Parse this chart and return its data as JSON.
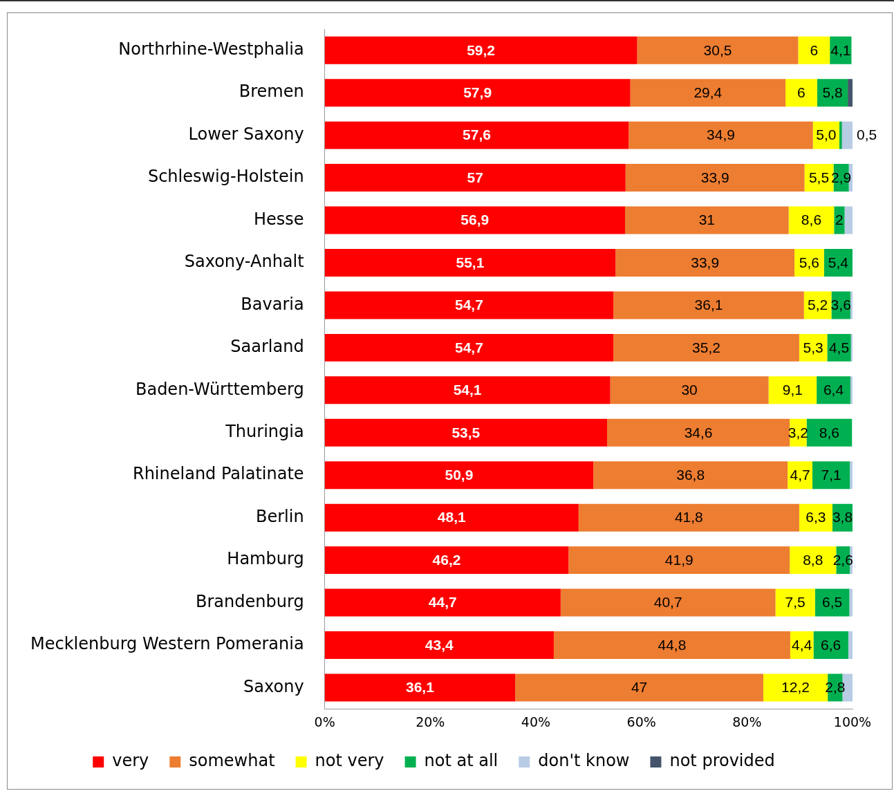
{
  "chart_data": {
    "type": "bar",
    "orientation": "horizontal",
    "stacked": true,
    "categories": [
      "Northrhine-Westphalia",
      "Bremen",
      "Lower Saxony",
      "Schleswig-Holstein",
      "Hesse",
      "Saxony-Anhalt",
      "Bavaria",
      "Saarland",
      "Baden-Württemberg",
      "Thuringia",
      "Rhineland Palatinate",
      "Berlin",
      "Hamburg",
      "Brandenburg",
      "Mecklenburg Western Pomerania",
      "Saxony"
    ],
    "series": [
      {
        "name": "very",
        "color": "#ff0000",
        "values": [
          59.2,
          57.9,
          57.6,
          57,
          56.9,
          55.1,
          54.7,
          54.7,
          54.1,
          53.5,
          50.9,
          48.1,
          46.2,
          44.7,
          43.4,
          36.1
        ],
        "value_labels": [
          "59,2",
          "57,9",
          "57,6",
          "57",
          "56,9",
          "55,1",
          "54,7",
          "54,7",
          "54,1",
          "53,5",
          "50,9",
          "48,1",
          "46,2",
          "44,7",
          "43,4",
          "36,1"
        ]
      },
      {
        "name": "somewhat",
        "color": "#ed7d31",
        "values": [
          30.5,
          29.4,
          34.9,
          33.9,
          31,
          33.9,
          36.1,
          35.2,
          30,
          34.6,
          36.8,
          41.8,
          41.9,
          40.7,
          44.8,
          47
        ],
        "value_labels": [
          "30,5",
          "29,4",
          "34,9",
          "33,9",
          "31",
          "33,9",
          "36,1",
          "35,2",
          "30",
          "34,6",
          "36,8",
          "41,8",
          "41,9",
          "40,7",
          "44,8",
          "47"
        ]
      },
      {
        "name": "not very",
        "color": "#ffff00",
        "values": [
          6,
          6,
          5.0,
          5.5,
          8.6,
          5.6,
          5.2,
          5.3,
          9.1,
          3.2,
          4.7,
          6.3,
          8.8,
          7.5,
          4.4,
          12.2
        ],
        "value_labels": [
          "6",
          "6",
          "5,0",
          "5,5",
          "8,6",
          "5,6",
          "5,2",
          "5,3",
          "9,1",
          "3,2",
          "4,7",
          "6,3",
          "8,8",
          "7,5",
          "4,4",
          "12,2"
        ]
      },
      {
        "name": "not at all",
        "color": "#00b050",
        "values": [
          4.1,
          5.8,
          0.5,
          2.9,
          2,
          5.4,
          3.6,
          4.5,
          6.4,
          8.6,
          7.1,
          3.8,
          2.6,
          6.5,
          6.6,
          2.8
        ],
        "value_labels": [
          "4,1",
          "5,8",
          "0,5",
          "2,9",
          "2",
          "5,4",
          "3,6",
          "4,5",
          "6,4",
          "8,6",
          "7,1",
          "3,8",
          "2,6",
          "6,5",
          "6,6",
          "2,8"
        ]
      },
      {
        "name": "don't know",
        "color": "#b8cce4",
        "values": [
          null,
          null,
          2.0,
          0.7,
          1.5,
          null,
          0.4,
          0.3,
          0.4,
          null,
          0.5,
          null,
          0.5,
          0.6,
          0.8,
          1.9
        ]
      },
      {
        "name": "not provided",
        "color": "#44546a",
        "values": [
          null,
          0.9,
          null,
          null,
          null,
          null,
          null,
          null,
          null,
          null,
          null,
          null,
          null,
          null,
          null,
          null
        ]
      }
    ],
    "xlim": [
      0,
      100
    ],
    "xticks": [
      {
        "value": 0,
        "label": "0%"
      },
      {
        "value": 20,
        "label": "20%"
      },
      {
        "value": 40,
        "label": "40%"
      },
      {
        "value": 60,
        "label": "60%"
      },
      {
        "value": 80,
        "label": "80%"
      },
      {
        "value": 100,
        "label": "100%"
      }
    ],
    "grid": false,
    "legend": "bottom"
  }
}
